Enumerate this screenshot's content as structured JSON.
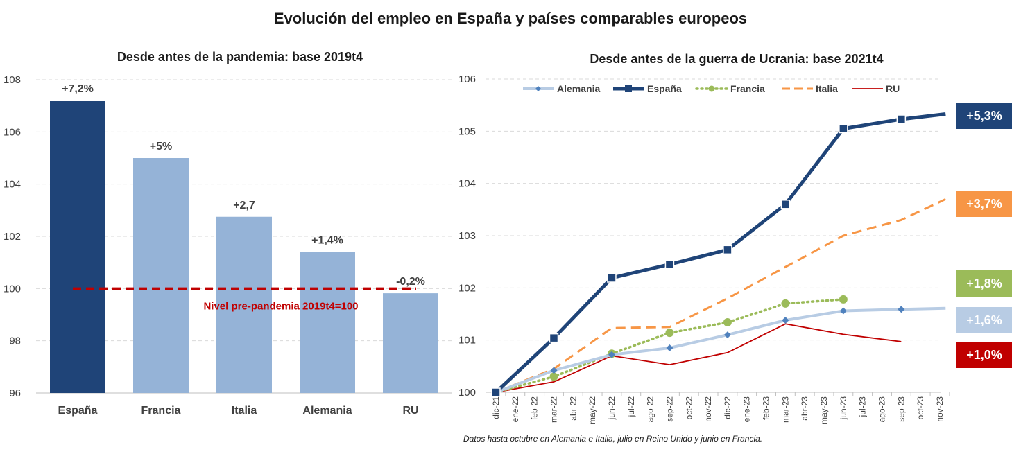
{
  "title": "Evolución del empleo en España y países comparables europeos",
  "footnote": "Datos hasta octubre en Alemania e Italia, julio en Reino Unido y junio en Francia.",
  "colors": {
    "spain": "#1f4478",
    "light_blue": "#95b3d7",
    "germany": "#b8cce4",
    "italy": "#f79646",
    "france": "#9bbb59",
    "uk": "#c00000",
    "ref_line": "#c00000"
  },
  "chart_data": [
    {
      "type": "bar",
      "title": "Desde antes de la pandemia: base 2019t4",
      "categories": [
        "España",
        "Francia",
        "Italia",
        "Alemania",
        "RU"
      ],
      "values": [
        107.2,
        105.0,
        102.75,
        101.4,
        99.82
      ],
      "data_labels": [
        "+7,2%",
        "+5%",
        "+2,7",
        "+1,4%",
        "-0,2%"
      ],
      "bar_colors": [
        "#1f4478",
        "#95b3d7",
        "#95b3d7",
        "#95b3d7",
        "#95b3d7"
      ],
      "ylim": [
        96,
        108
      ],
      "yticks": [
        "96",
        "98",
        "100",
        "102",
        "104",
        "106",
        "108"
      ],
      "reference_line": {
        "value": 100,
        "label": "Nivel pre-pandemia 2019t4=100"
      },
      "grid": true
    },
    {
      "type": "line",
      "title": "Desde antes de la guerra de Ucrania: base 2021t4",
      "x": [
        "dic-21",
        "ene-22",
        "feb-22",
        "mar-22",
        "abr-22",
        "may-22",
        "jun-22",
        "jul-22",
        "ago-22",
        "sep-22",
        "oct-22",
        "nov-22",
        "dic-22",
        "ene-23",
        "feb-23",
        "mar-23",
        "abr-23",
        "may-23",
        "jun-23",
        "jul-23",
        "ago-23",
        "sep-23",
        "oct-23",
        "nov-23"
      ],
      "ylim": [
        100,
        106
      ],
      "yticks": [
        "100",
        "101",
        "102",
        "103",
        "104",
        "105",
        "106"
      ],
      "legend_position": "top",
      "grid": true,
      "series": [
        {
          "name": "Alemania",
          "color": "#b8cce4",
          "style": "diamond-line",
          "points": [
            [
              0,
              100.0
            ],
            [
              3,
              100.42
            ],
            [
              6,
              100.72
            ],
            [
              9,
              100.85
            ],
            [
              12,
              101.1
            ],
            [
              15,
              101.38
            ],
            [
              18,
              101.56
            ],
            [
              21,
              101.59
            ],
            [
              23.3,
              101.61
            ]
          ],
          "markers": [
            0,
            3,
            6,
            9,
            12,
            15,
            18,
            21
          ],
          "end_label": "+1,6%"
        },
        {
          "name": "España",
          "color": "#1f4478",
          "style": "square-line",
          "points": [
            [
              0,
              100.0
            ],
            [
              3,
              101.04
            ],
            [
              6,
              102.19
            ],
            [
              9,
              102.45
            ],
            [
              12,
              102.73
            ],
            [
              15,
              103.6
            ],
            [
              18,
              105.05
            ],
            [
              21,
              105.23
            ],
            [
              23.3,
              105.33
            ]
          ],
          "markers": [
            0,
            3,
            6,
            9,
            12,
            15,
            18,
            21
          ],
          "end_label": "+5,3%"
        },
        {
          "name": "Francia",
          "color": "#9bbb59",
          "style": "dotted-circle",
          "points": [
            [
              0,
              100.0
            ],
            [
              3,
              100.3
            ],
            [
              6,
              100.74
            ],
            [
              9,
              101.14
            ],
            [
              12,
              101.34
            ],
            [
              15,
              101.7
            ],
            [
              18,
              101.78
            ]
          ],
          "markers": [
            0,
            3,
            6,
            9,
            12,
            15,
            18
          ],
          "end_label": "+1,8%"
        },
        {
          "name": "Italia",
          "color": "#f79646",
          "style": "dashed",
          "points": [
            [
              0,
              100.0
            ],
            [
              3,
              100.45
            ],
            [
              6,
              101.23
            ],
            [
              9,
              101.25
            ],
            [
              12,
              101.8
            ],
            [
              15,
              102.4
            ],
            [
              18,
              103.0
            ],
            [
              21,
              103.3
            ],
            [
              23.3,
              103.7
            ]
          ],
          "markers": [],
          "end_label": "+3,7%"
        },
        {
          "name": "RU",
          "color": "#c00000",
          "style": "thin",
          "points": [
            [
              0,
              100.0
            ],
            [
              3,
              100.2
            ],
            [
              6,
              100.7
            ],
            [
              9,
              100.53
            ],
            [
              12,
              100.76
            ],
            [
              15,
              101.31
            ],
            [
              18,
              101.11
            ],
            [
              21,
              100.97
            ]
          ],
          "markers": [],
          "end_label": "+1,0%"
        }
      ]
    }
  ]
}
